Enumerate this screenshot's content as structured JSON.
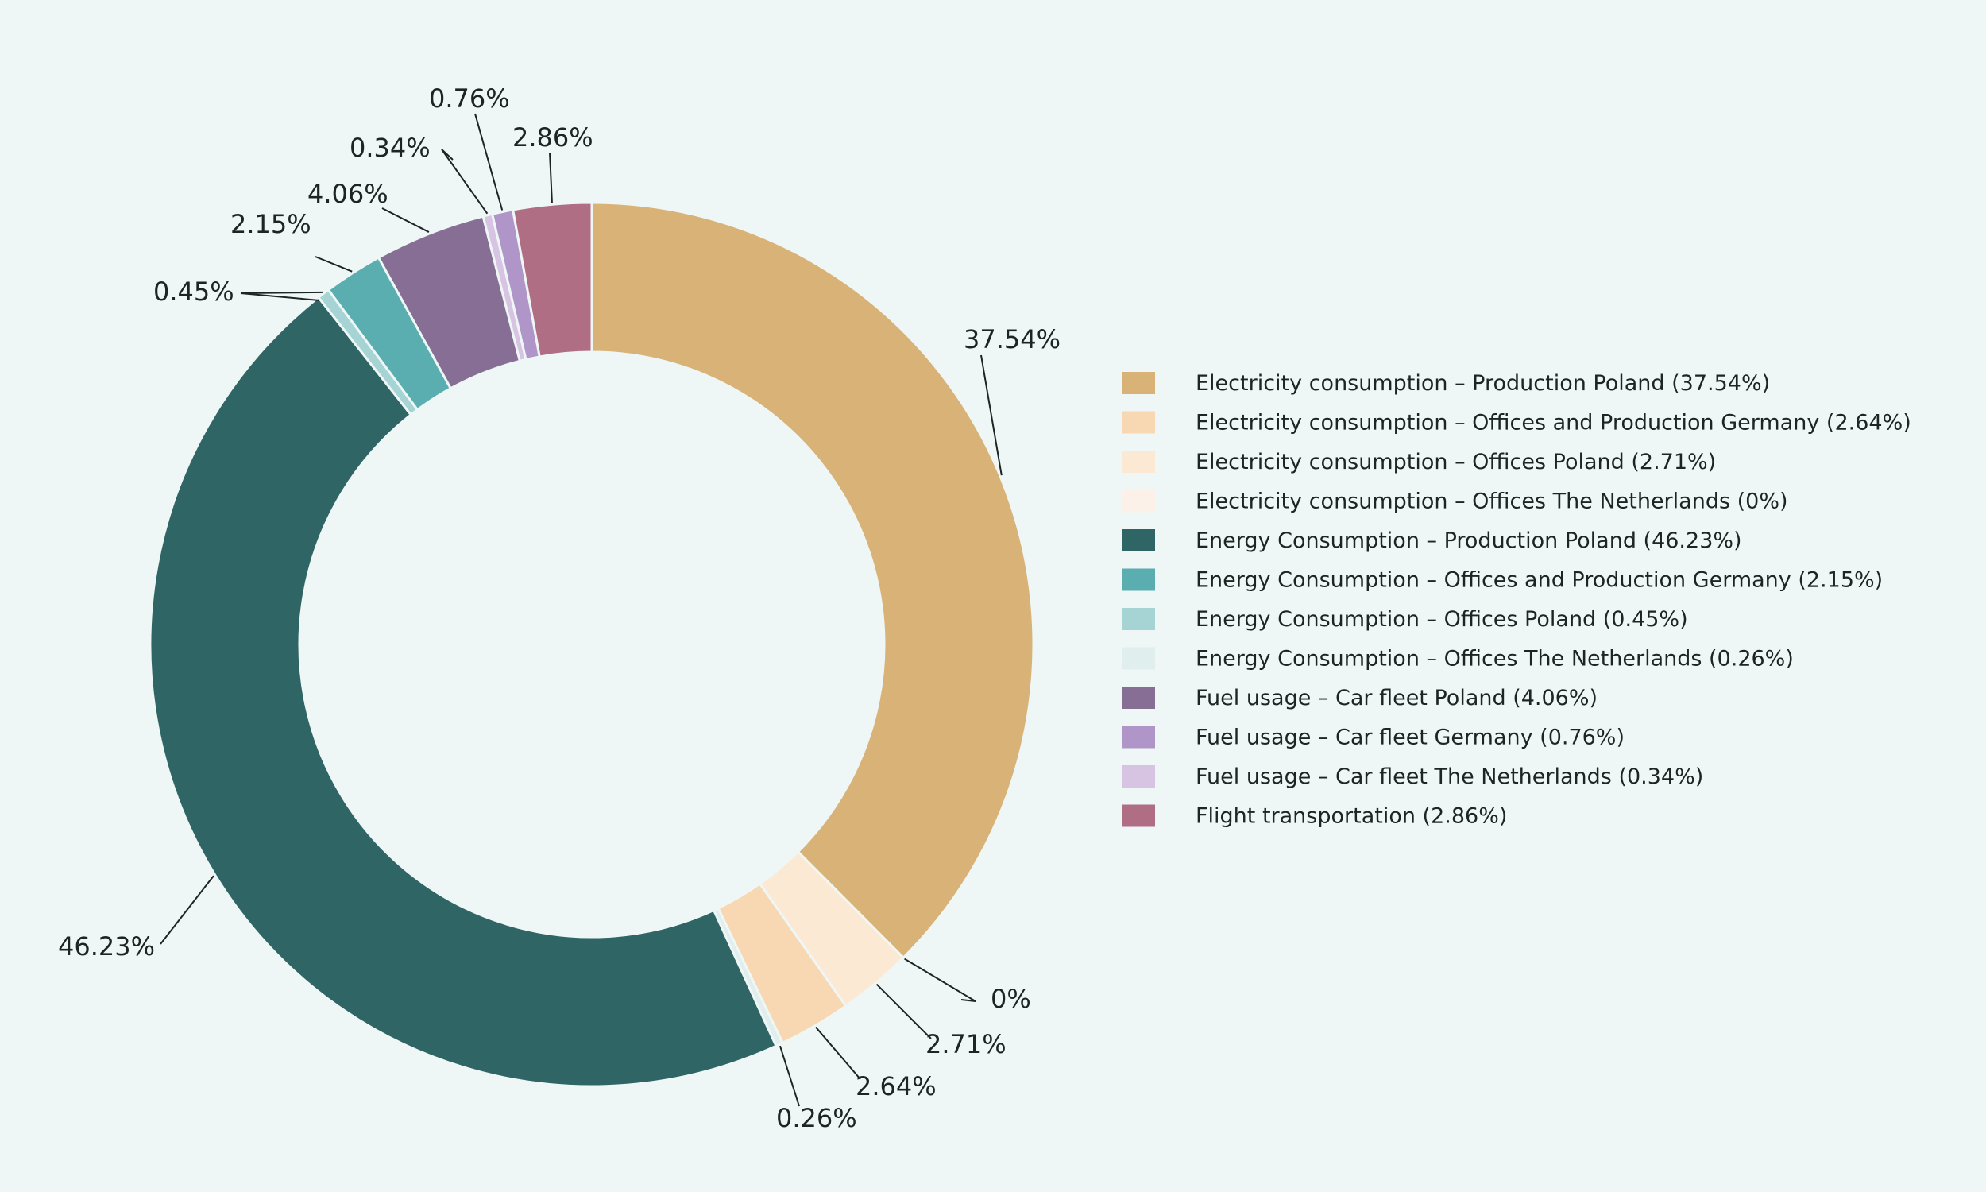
{
  "chart_data": {
    "type": "pie",
    "variant": "donut",
    "start_angle_deg": 0,
    "direction": "clockwise",
    "legend_position": "right",
    "slices": [
      {
        "label": "Electricity consumption – Production Poland (37.54%)",
        "value": 37.54,
        "value_label": "37.54%",
        "color": "#d8b276"
      },
      {
        "label": "Electricity consumption – Offices The Netherlands (0%)",
        "value": 0,
        "value_label": "0%",
        "color": "#fbf1e8"
      },
      {
        "label": "Electricity consumption – Offices Poland (2.71%)",
        "value": 2.71,
        "value_label": "2.71%",
        "color": "#fbe9d4"
      },
      {
        "label": "Electricity consumption – Offices and Production Germany (2.64%)",
        "value": 2.64,
        "value_label": "2.64%",
        "color": "#f8d8b2"
      },
      {
        "label": "Energy Consumption – Offices The Netherlands (0.26%)",
        "value": 0.26,
        "value_label": "0.26%",
        "color": "#e0eeee"
      },
      {
        "label": "Energy Consumption – Production Poland (46.23%)",
        "value": 46.23,
        "value_label": "46.23%",
        "color": "#306565"
      },
      {
        "label": "Energy Consumption – Offices Poland  (0.45%)",
        "value": 0.45,
        "value_label": "0.45%",
        "color": "#a6d4d4"
      },
      {
        "label": "Energy Consumption – Offices and Production Germany (2.15%)",
        "value": 2.15,
        "value_label": "2.15%",
        "color": "#5aaeb0"
      },
      {
        "label": "Fuel usage – Car fleet Poland (4.06%)",
        "value": 4.06,
        "value_label": "4.06%",
        "color": "#866e94"
      },
      {
        "label": "Fuel usage – Car fleet The Netherlands (0.34%)",
        "value": 0.34,
        "value_label": "0.34%",
        "color": "#d7c4e2"
      },
      {
        "label": "Fuel usage – Car fleet Germany (0.76%)",
        "value": 0.76,
        "value_label": "0.76%",
        "color": "#b095c8"
      },
      {
        "label": "Flight transportation (2.86%)",
        "value": 2.86,
        "value_label": "2.86%",
        "color": "#b06e85"
      }
    ],
    "legend": [
      {
        "label": "Electricity consumption – Production Poland (37.54%)",
        "color": "#d8b276"
      },
      {
        "label": "Electricity consumption – Offices and Production Germany (2.64%)",
        "color": "#f8d8b2"
      },
      {
        "label": "Electricity consumption – Offices Poland (2.71%)",
        "color": "#fbe9d4"
      },
      {
        "label": "Electricity consumption – Offices The Netherlands (0%)",
        "color": "#fbf1e8"
      },
      {
        "label": "Energy Consumption – Production Poland (46.23%)",
        "color": "#306565"
      },
      {
        "label": "Energy Consumption – Offices and Production Germany (2.15%)",
        "color": "#5aaeb0"
      },
      {
        "label": "Energy Consumption – Offices Poland  (0.45%)",
        "color": "#a6d4d4"
      },
      {
        "label": "Energy Consumption – Offices The Netherlands (0.26%)",
        "color": "#e0eeee"
      },
      {
        "label": "Fuel usage – Car fleet Poland (4.06%)",
        "color": "#866e94"
      },
      {
        "label": "Fuel usage – Car fleet Germany (0.76%)",
        "color": "#b095c8"
      },
      {
        "label": "Fuel usage – Car fleet The Netherlands (0.34%)",
        "color": "#d7c4e2"
      },
      {
        "label": "Flight transportation (2.86%)",
        "color": "#b06e85"
      }
    ]
  }
}
